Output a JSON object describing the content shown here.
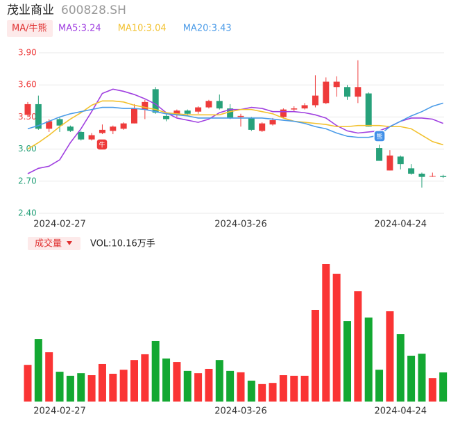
{
  "header": {
    "title": "茂业商业",
    "code": "600828.SH",
    "tag": "MA/牛熊",
    "volume_tag": "成交量",
    "signals": [
      "牛",
      "熊"
    ]
  },
  "chart_data": [
    {
      "type": "candlestick",
      "categories": [
        null,
        null,
        null,
        "2024-02-27",
        null,
        null,
        null,
        null,
        null,
        null,
        null,
        null,
        null,
        null,
        null,
        null,
        null,
        null,
        null,
        null,
        "2024-03-26",
        null,
        null,
        null,
        null,
        null,
        null,
        null,
        null,
        null,
        null,
        null,
        null,
        null,
        null,
        "2024-04-24",
        null,
        null,
        null,
        null
      ],
      "open": [
        3.32,
        3.42,
        3.19,
        3.28,
        3.21,
        3.16,
        3.09,
        3.15,
        3.17,
        3.19,
        3.24,
        3.37,
        3.56,
        3.31,
        3.32,
        3.36,
        3.35,
        3.39,
        3.45,
        3.38,
        3.3,
        3.29,
        3.17,
        3.23,
        3.3,
        3.37,
        3.38,
        3.41,
        3.43,
        3.58,
        3.58,
        3.49,
        3.52,
        3.01,
        2.8,
        2.93,
        2.82,
        2.77,
        2.75,
        2.75
      ],
      "high": [
        3.44,
        3.5,
        3.28,
        3.3,
        3.22,
        3.17,
        3.15,
        3.23,
        3.22,
        3.25,
        3.42,
        3.46,
        3.58,
        3.33,
        3.37,
        3.37,
        3.4,
        3.46,
        3.51,
        3.42,
        3.33,
        3.3,
        3.25,
        3.29,
        3.38,
        3.4,
        3.43,
        3.69,
        3.67,
        3.68,
        3.6,
        3.83,
        3.53,
        3.04,
        2.99,
        2.94,
        2.86,
        2.78,
        2.78,
        2.76
      ],
      "low": [
        3.3,
        3.18,
        3.16,
        3.16,
        3.16,
        3.08,
        3.08,
        3.14,
        3.14,
        3.18,
        3.24,
        3.28,
        3.33,
        3.26,
        3.3,
        3.31,
        3.33,
        3.38,
        3.37,
        3.28,
        3.21,
        3.17,
        3.16,
        3.22,
        3.29,
        3.35,
        3.37,
        3.39,
        3.42,
        3.49,
        3.46,
        3.43,
        3.21,
        2.89,
        2.8,
        2.81,
        2.76,
        2.64,
        2.74,
        2.73
      ],
      "close": [
        3.42,
        3.19,
        3.26,
        3.22,
        3.17,
        3.09,
        3.13,
        3.18,
        3.21,
        3.24,
        3.38,
        3.44,
        3.34,
        3.28,
        3.36,
        3.33,
        3.39,
        3.45,
        3.38,
        3.29,
        3.31,
        3.18,
        3.24,
        3.27,
        3.37,
        3.38,
        3.41,
        3.5,
        3.63,
        3.63,
        3.49,
        3.58,
        3.21,
        2.89,
        2.94,
        2.86,
        2.77,
        2.74,
        2.75,
        2.74
      ],
      "up_color": "#ee3b3b",
      "down_color": "#27a17a",
      "series": [
        {
          "name": "MA5:3.24",
          "color": "#a040e0",
          "values": [
            2.77,
            2.82,
            2.84,
            2.9,
            3.06,
            3.19,
            3.35,
            3.52,
            3.56,
            3.54,
            3.51,
            3.47,
            3.42,
            3.34,
            3.29,
            3.27,
            3.25,
            3.28,
            3.34,
            3.37,
            3.37,
            3.39,
            3.38,
            3.35,
            3.35,
            3.35,
            3.34,
            3.32,
            3.29,
            3.22,
            3.17,
            3.15,
            3.16,
            3.17,
            3.21,
            3.26,
            3.29,
            3.29,
            3.28,
            3.24
          ]
        },
        {
          "name": "MA10:3.04",
          "color": "#f2c12e",
          "values": [
            3.0,
            3.06,
            3.13,
            3.21,
            3.28,
            3.34,
            3.41,
            3.45,
            3.45,
            3.44,
            3.41,
            3.39,
            3.37,
            3.34,
            3.33,
            3.32,
            3.32,
            3.32,
            3.32,
            3.35,
            3.37,
            3.37,
            3.35,
            3.33,
            3.29,
            3.26,
            3.25,
            3.24,
            3.23,
            3.21,
            3.21,
            3.22,
            3.22,
            3.22,
            3.21,
            3.21,
            3.19,
            3.13,
            3.07,
            3.04
          ]
        },
        {
          "name": "MA20:3.43",
          "color": "#4a9be8",
          "values": [
            3.19,
            3.22,
            3.26,
            3.3,
            3.33,
            3.35,
            3.37,
            3.39,
            3.39,
            3.38,
            3.38,
            3.37,
            3.35,
            3.33,
            3.32,
            3.31,
            3.29,
            3.29,
            3.29,
            3.29,
            3.29,
            3.29,
            3.29,
            3.28,
            3.27,
            3.26,
            3.24,
            3.21,
            3.19,
            3.15,
            3.12,
            3.11,
            3.11,
            3.13,
            3.21,
            3.26,
            3.31,
            3.35,
            3.4,
            3.43
          ]
        }
      ],
      "ylim": [
        2.4,
        3.9
      ],
      "yticks": [
        {
          "value": 3.9,
          "label": "3.90"
        },
        {
          "value": 3.6,
          "label": "3.60"
        },
        {
          "value": 3.3,
          "label": "3.30"
        },
        {
          "value": 3.0,
          "label": "3.00"
        },
        {
          "value": 2.7,
          "label": "2.70"
        },
        {
          "value": 2.4,
          "label": "2.40"
        }
      ],
      "ytick_colors": [
        "#ee3b3b",
        "#ee3b3b",
        "#ee3b3b",
        "#27a17a",
        "#27a17a",
        "#27a17a"
      ],
      "grid": true
    },
    {
      "type": "bar",
      "label": "VOL:10.16万手",
      "categories": [
        null,
        null,
        null,
        "2024-02-27",
        null,
        null,
        null,
        null,
        null,
        null,
        null,
        null,
        null,
        null,
        null,
        null,
        null,
        null,
        null,
        null,
        "2024-03-26",
        null,
        null,
        null,
        null,
        null,
        null,
        null,
        null,
        null,
        null,
        null,
        null,
        null,
        null,
        "2024-04-24",
        null,
        null,
        null,
        null
      ],
      "values": [
        12.8,
        21.8,
        17.2,
        10.4,
        9.0,
        9.9,
        9.2,
        13.1,
        9.7,
        11.1,
        14.5,
        16.5,
        21.1,
        15.0,
        13.8,
        10.7,
        9.9,
        11.4,
        14.5,
        10.7,
        10.2,
        7.3,
        6.1,
        6.5,
        9.2,
        9.0,
        9.0,
        32.0,
        48.0,
        44.6,
        28.1,
        38.5,
        29.3,
        11.1,
        31.5,
        23.5,
        16.0,
        16.7,
        8.2,
        10.16
      ],
      "up_color": "#fa3434",
      "down_color": "#13a832"
    }
  ]
}
